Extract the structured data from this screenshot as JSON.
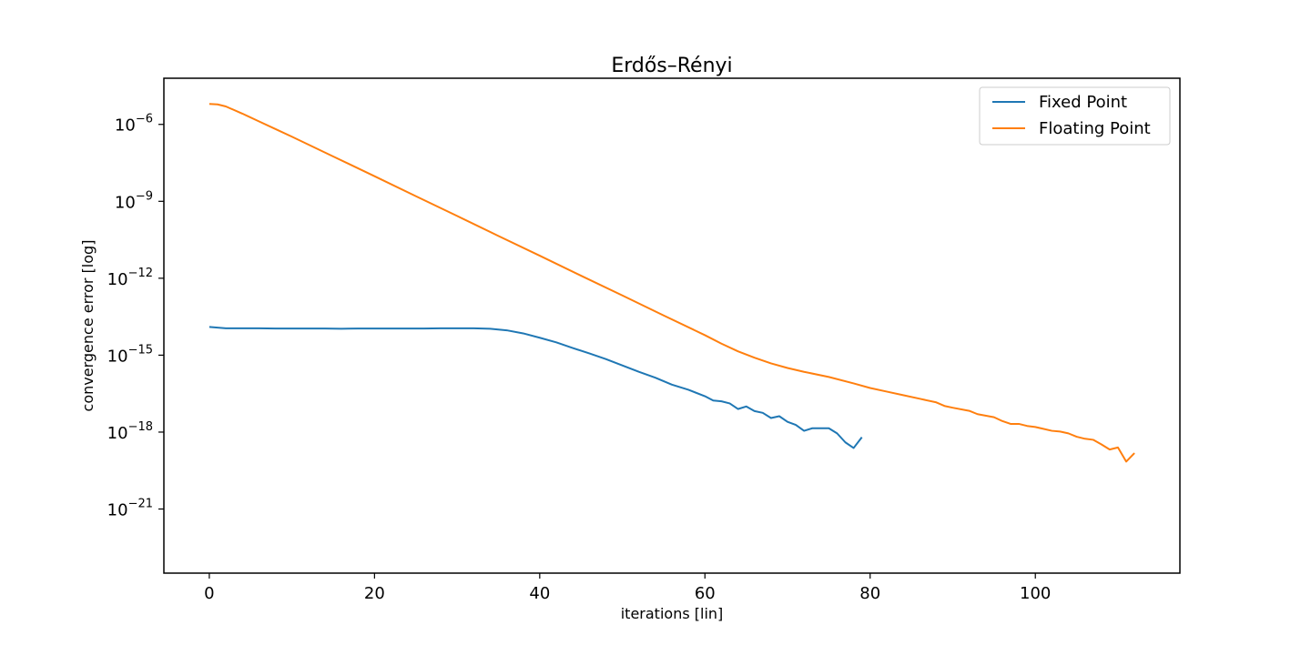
{
  "chart_data": {
    "type": "line",
    "title": "Erdős–Rényi",
    "xlabel": "iterations [lin]",
    "ylabel": "convergence error [log]",
    "xscale": "linear",
    "yscale": "log",
    "xlim": [
      -5.5,
      117.5
    ],
    "ylim_log10": [
      -23.5,
      -4.2
    ],
    "xticks": [
      0,
      20,
      40,
      60,
      80,
      100
    ],
    "yticks_exp": [
      -6,
      -9,
      -12,
      -15,
      -18,
      -21
    ],
    "ytick_base": "10",
    "ytick_minus": "−",
    "legend_position": "upper right",
    "series": [
      {
        "name": "Fixed Point",
        "color": "#1f77b4",
        "x": [
          0,
          2,
          4,
          6,
          8,
          10,
          12,
          14,
          16,
          18,
          20,
          22,
          24,
          26,
          28,
          30,
          32,
          34,
          36,
          38,
          40,
          42,
          44,
          46,
          48,
          50,
          52,
          54,
          56,
          58,
          60,
          61,
          62,
          63,
          64,
          65,
          66,
          67,
          68,
          69,
          70,
          71,
          72,
          73,
          74,
          75,
          76,
          77,
          78,
          79
        ],
        "log10_y": [
          -13.9,
          -13.95,
          -13.95,
          -13.95,
          -13.96,
          -13.96,
          -13.96,
          -13.96,
          -13.97,
          -13.96,
          -13.96,
          -13.96,
          -13.96,
          -13.96,
          -13.95,
          -13.95,
          -13.95,
          -13.97,
          -14.03,
          -14.15,
          -14.32,
          -14.5,
          -14.72,
          -14.93,
          -15.15,
          -15.4,
          -15.65,
          -15.88,
          -16.15,
          -16.35,
          -16.6,
          -16.77,
          -16.8,
          -16.88,
          -17.1,
          -17.0,
          -17.18,
          -17.25,
          -17.45,
          -17.38,
          -17.6,
          -17.72,
          -17.95,
          -17.85,
          -17.85,
          -17.85,
          -18.05,
          -18.4,
          -18.62,
          -18.2
        ]
      },
      {
        "name": "Floating Point",
        "color": "#ff7f0e",
        "x": [
          0,
          1,
          2,
          4,
          6,
          8,
          10,
          15,
          20,
          25,
          30,
          35,
          40,
          45,
          50,
          55,
          60,
          62,
          64,
          66,
          68,
          70,
          72,
          75,
          78,
          80,
          82,
          84,
          86,
          88,
          89,
          90,
          92,
          93,
          95,
          96,
          97,
          98,
          99,
          100,
          102,
          103,
          104,
          105,
          106,
          107,
          108,
          109,
          110,
          111,
          112
        ],
        "log10_y": [
          -5.2,
          -5.22,
          -5.3,
          -5.58,
          -5.88,
          -6.18,
          -6.48,
          -7.25,
          -8.02,
          -8.8,
          -9.57,
          -10.35,
          -11.12,
          -11.9,
          -12.67,
          -13.45,
          -14.22,
          -14.55,
          -14.85,
          -15.1,
          -15.32,
          -15.5,
          -15.65,
          -15.85,
          -16.1,
          -16.28,
          -16.42,
          -16.56,
          -16.7,
          -16.84,
          -16.98,
          -17.05,
          -17.17,
          -17.3,
          -17.42,
          -17.57,
          -17.68,
          -17.68,
          -17.76,
          -17.8,
          -17.95,
          -17.98,
          -18.05,
          -18.18,
          -18.26,
          -18.3,
          -18.48,
          -18.68,
          -18.6,
          -19.15,
          -18.82
        ]
      }
    ]
  }
}
